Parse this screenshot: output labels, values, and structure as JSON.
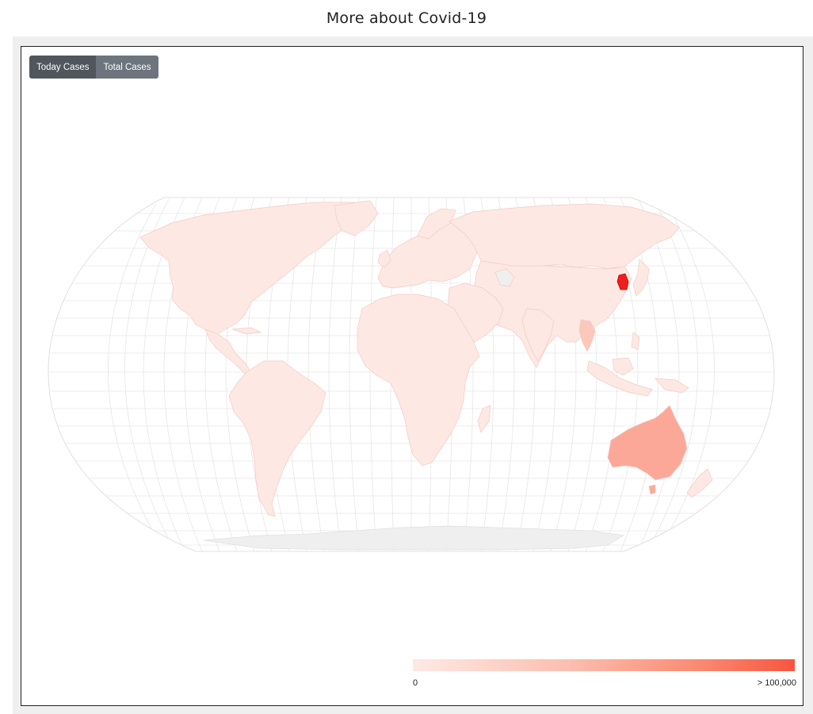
{
  "header": {
    "title": "More about Covid-19"
  },
  "controls": {
    "today_label": "Today Cases",
    "total_label": "Total Cases",
    "active": "today"
  },
  "legend": {
    "min_label": "0",
    "max_label": "> 100,000",
    "color_low": "#fee9e4",
    "color_high": "#f8553f"
  },
  "map": {
    "projection": "robinson",
    "graticule": true,
    "colors": {
      "base": "#fde8e4",
      "no_data": "#efefef",
      "medium": "#fca899",
      "high": "#f11e1e",
      "grid": "#e3e3e3",
      "border": "#f3cbc3"
    },
    "highlighted": [
      {
        "name": "South Korea",
        "level": "high"
      },
      {
        "name": "Australia",
        "level": "medium"
      },
      {
        "name": "Thailand",
        "level": "low-medium"
      }
    ]
  }
}
